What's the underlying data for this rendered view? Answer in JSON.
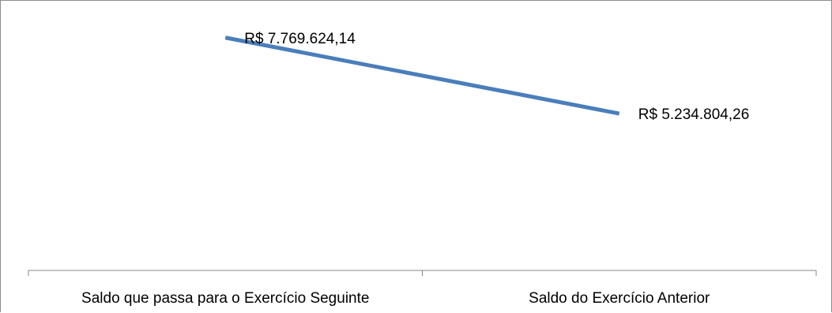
{
  "chart_data": {
    "type": "line",
    "title": "",
    "xlabel": "",
    "ylabel": "",
    "categories": [
      "Saldo que passa para o Exercício Seguinte",
      "Saldo do Exercício Anterior"
    ],
    "series": [
      {
        "values": [
          7769624.14,
          5234804.26
        ],
        "data_labels": [
          "R$ 7.769.624,14",
          "R$ 5.234.804,26"
        ],
        "color": "#4a7ebb"
      }
    ],
    "ylim": [
      0,
      9000000
    ],
    "grid": false,
    "legend": "none",
    "axis_color": "#868686"
  }
}
